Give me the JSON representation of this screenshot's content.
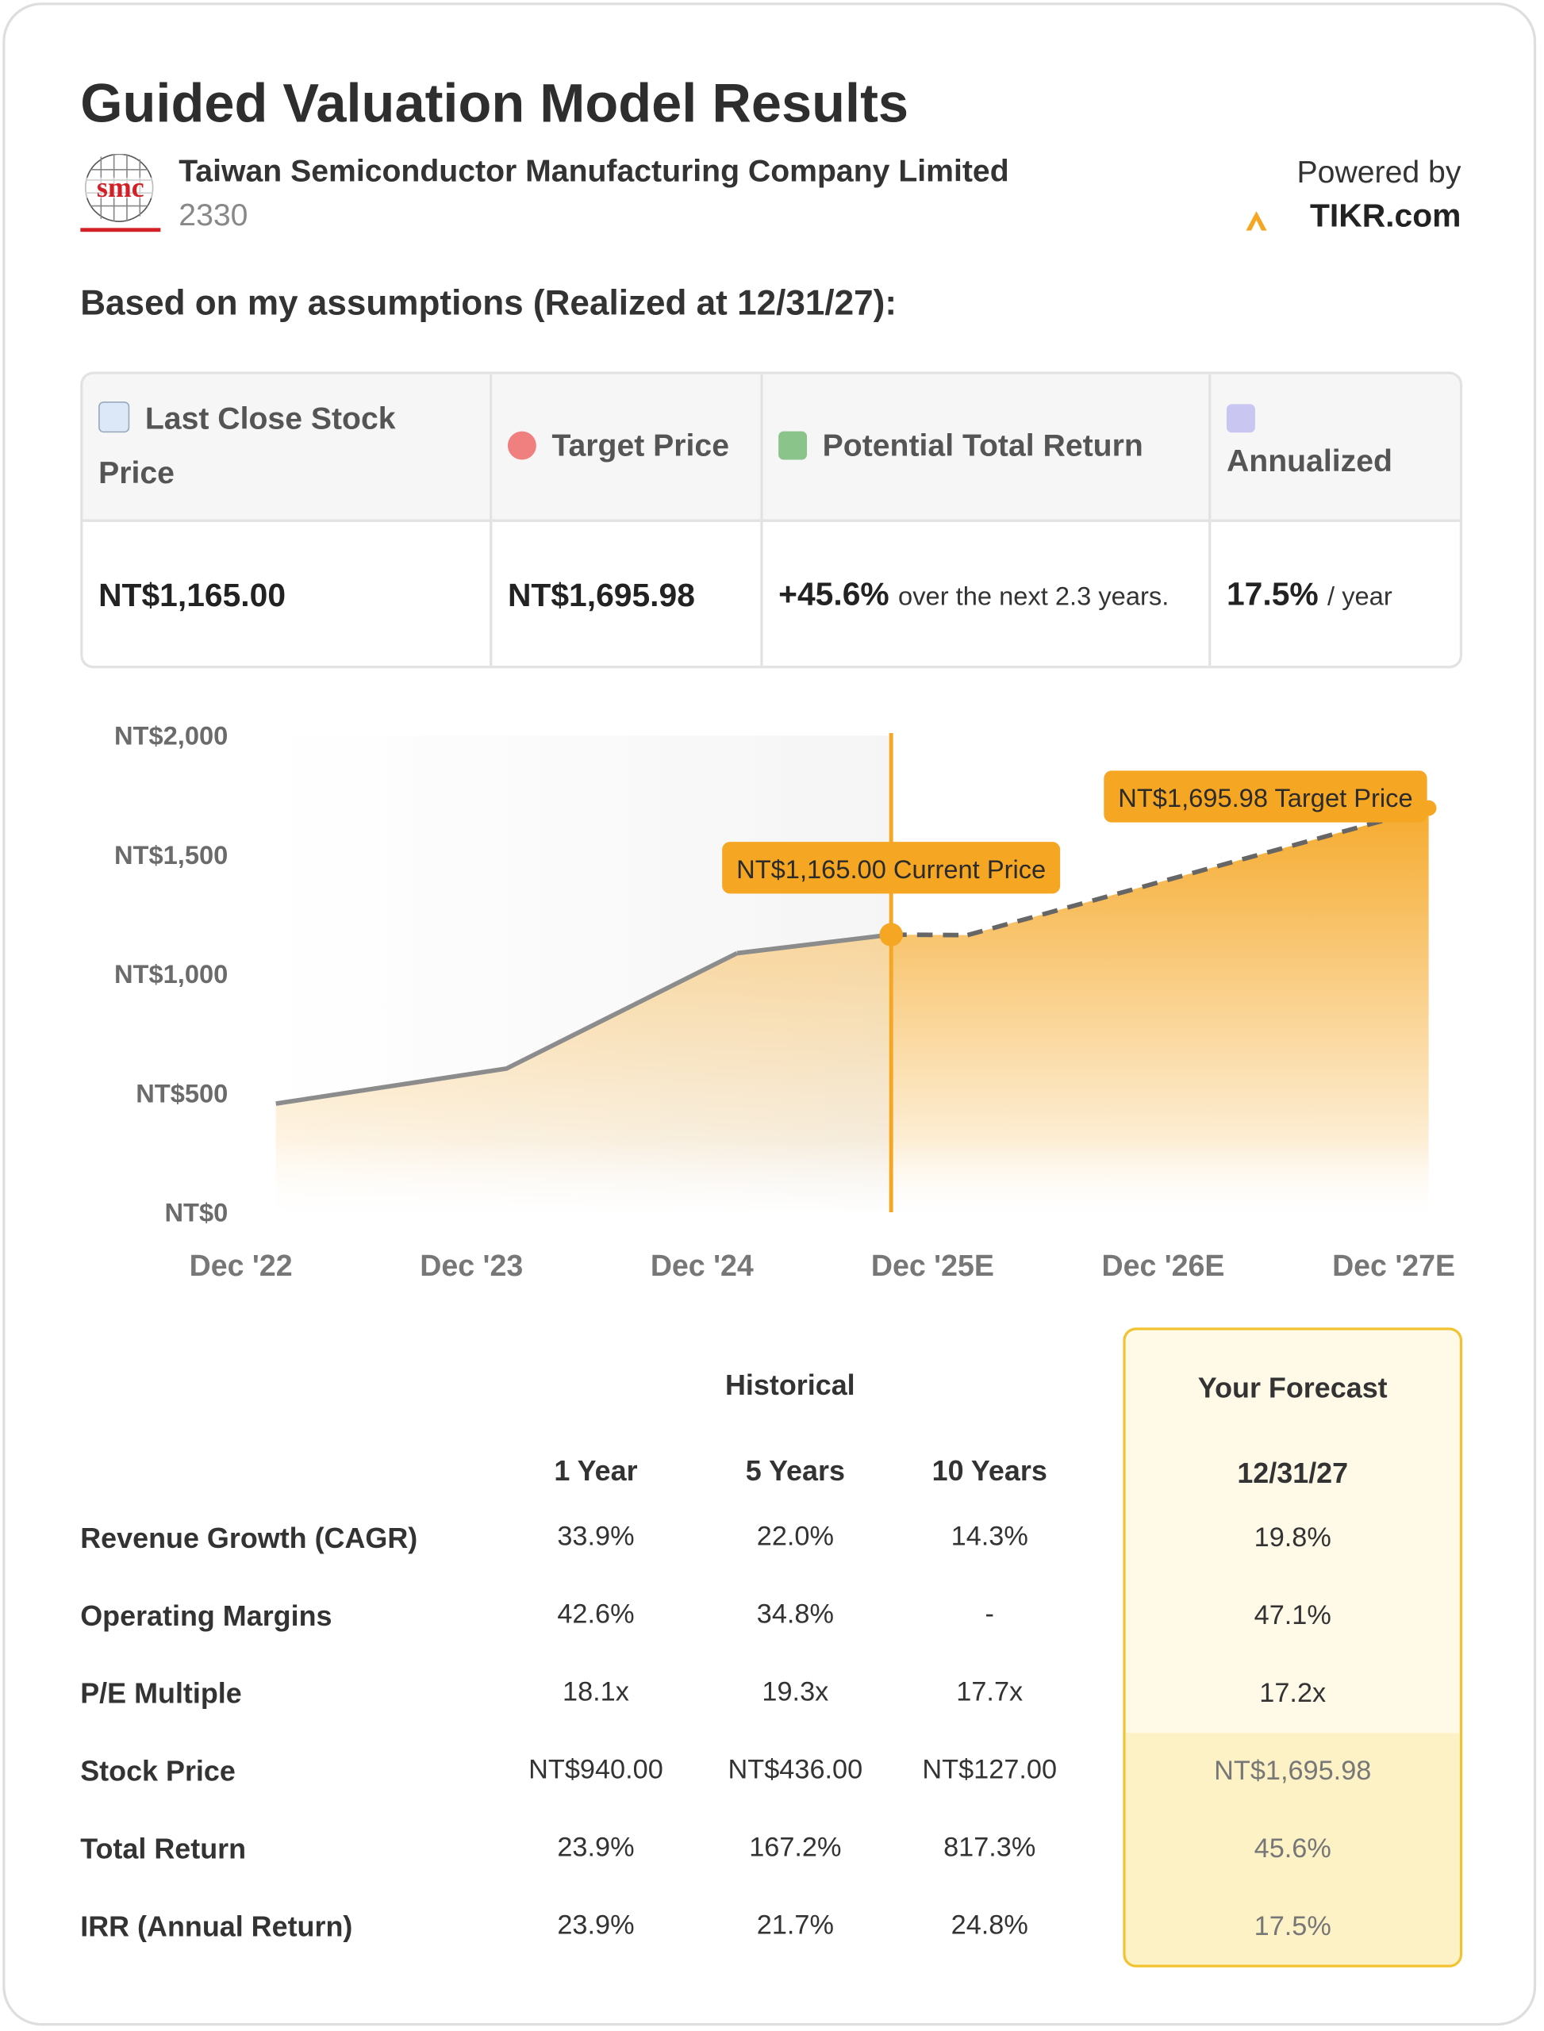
{
  "header": {
    "title": "Guided Valuation Model Results",
    "company": "Taiwan Semiconductor Manufacturing Company Limited",
    "ticker": "2330",
    "powered_by": "Powered by",
    "provider": "TIKR.com"
  },
  "assumptions_heading": "Based on my assumptions (Realized at 12/31/27):",
  "summary": {
    "headers": [
      "Last Close Stock Price",
      "Target Price",
      "Potential Total Return",
      "Annualized"
    ],
    "last_close": "NT$1,165.00",
    "target": "NT$1,695.98",
    "return": "+45.6%",
    "return_note": "over the next 2.3 years.",
    "annualized": "17.5%",
    "annualized_note": "/ year"
  },
  "chart_data": {
    "type": "area",
    "categories": [
      "Dec '22",
      "Dec '23",
      "Dec '24",
      "Dec '25E",
      "Dec '26E",
      "Dec '27E"
    ],
    "values": [
      456,
      603,
      1087,
      1163,
      1430,
      1695.98
    ],
    "color": "#f5a623",
    "ylim": [
      0,
      2000
    ],
    "yticks": [
      {
        "value": 0,
        "label": "NT$0"
      },
      {
        "value": 500,
        "label": "NT$500"
      },
      {
        "value": 1000,
        "label": "NT$1,000"
      },
      {
        "value": 1500,
        "label": "NT$1,500"
      },
      {
        "value": 2000,
        "label": "NT$2,000"
      }
    ],
    "current_price": {
      "value": 1165,
      "label": "NT$1,165.00 Current Price"
    },
    "target_price": {
      "value": 1695.98,
      "label": "NT$1,695.98 Target Price"
    }
  },
  "table": {
    "group_headers": [
      "Historical",
      "Your Forecast"
    ],
    "columns": [
      "1 Year",
      "5 Years",
      "10 Years",
      "12/31/27"
    ],
    "rows": [
      {
        "label": "Revenue Growth (CAGR)",
        "values": [
          "33.9%",
          "22.0%",
          "14.3%",
          "19.8%"
        ]
      },
      {
        "label": "Operating Margins",
        "values": [
          "42.6%",
          "34.8%",
          "-",
          "47.1%"
        ]
      },
      {
        "label": "P/E Multiple",
        "values": [
          "18.1x",
          "19.3x",
          "17.7x",
          "17.2x"
        ]
      },
      {
        "label": "Stock Price",
        "values": [
          "NT$940.00",
          "NT$436.00",
          "NT$127.00",
          "NT$1,695.98"
        ]
      },
      {
        "label": "Total Return",
        "values": [
          "23.9%",
          "167.2%",
          "817.3%",
          "45.6%"
        ]
      },
      {
        "label": "IRR (Annual Return)",
        "values": [
          "23.9%",
          "21.7%",
          "24.8%",
          "17.5%"
        ]
      }
    ]
  }
}
